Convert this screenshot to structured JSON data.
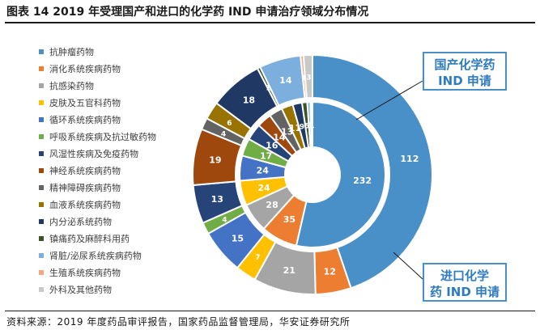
{
  "title": "图表 14 2019 年受理国产和进口的化学药 IND 申请治疗领域分布情况",
  "source": "资料来源：2019 年度药品审评报告，国家药品监督管理局，华安证券研究所",
  "callouts": {
    "domestic_line1": "国产化学药",
    "domestic_line2": "IND 申请",
    "imported_line1": "进口化学",
    "imported_line2": "药 IND 申请"
  },
  "chart_data": {
    "type": "pie",
    "subtype": "nested-donut",
    "title": "图表 14 2019 年受理国产和进口的化学药 IND 申请治疗领域分布情况",
    "categories": [
      "抗肿瘤药物",
      "消化系统疾病药物",
      "抗感染药物",
      "皮肤及五官科药物",
      "循环系统疾病药物",
      "呼吸系统疾病及抗过敏药物",
      "风湿性疾病及免疫药物",
      "神经系统疾病药物",
      "精神障碍疾病药物",
      "血液系统疾病药物",
      "内分泌系统药物",
      "镇痛药及麻醉科用药",
      "肾脏/泌尿系统疾病药物",
      "生殖系统疾病药物",
      "外科及其他药物"
    ],
    "colors": [
      "#4a90c8",
      "#ed7d31",
      "#a5a5a5",
      "#ffc000",
      "#4472c4",
      "#70ad47",
      "#264478",
      "#9e480e",
      "#636363",
      "#997300",
      "#1f3864",
      "#375623",
      "#7cafdd",
      "#f4a582",
      "#c9c9c9"
    ],
    "series": [
      {
        "name": "国产化学药 IND 申请",
        "ring": "inner",
        "values": [
          232,
          35,
          28,
          24,
          24,
          17,
          16,
          14,
          13,
          11,
          9,
          5,
          3,
          1,
          1
        ]
      },
      {
        "name": "进口化学药 IND 申请",
        "ring": "outer",
        "values": [
          112,
          12,
          21,
          7,
          15,
          4,
          13,
          19,
          4,
          6,
          18,
          1,
          14,
          1,
          3
        ]
      }
    ]
  }
}
